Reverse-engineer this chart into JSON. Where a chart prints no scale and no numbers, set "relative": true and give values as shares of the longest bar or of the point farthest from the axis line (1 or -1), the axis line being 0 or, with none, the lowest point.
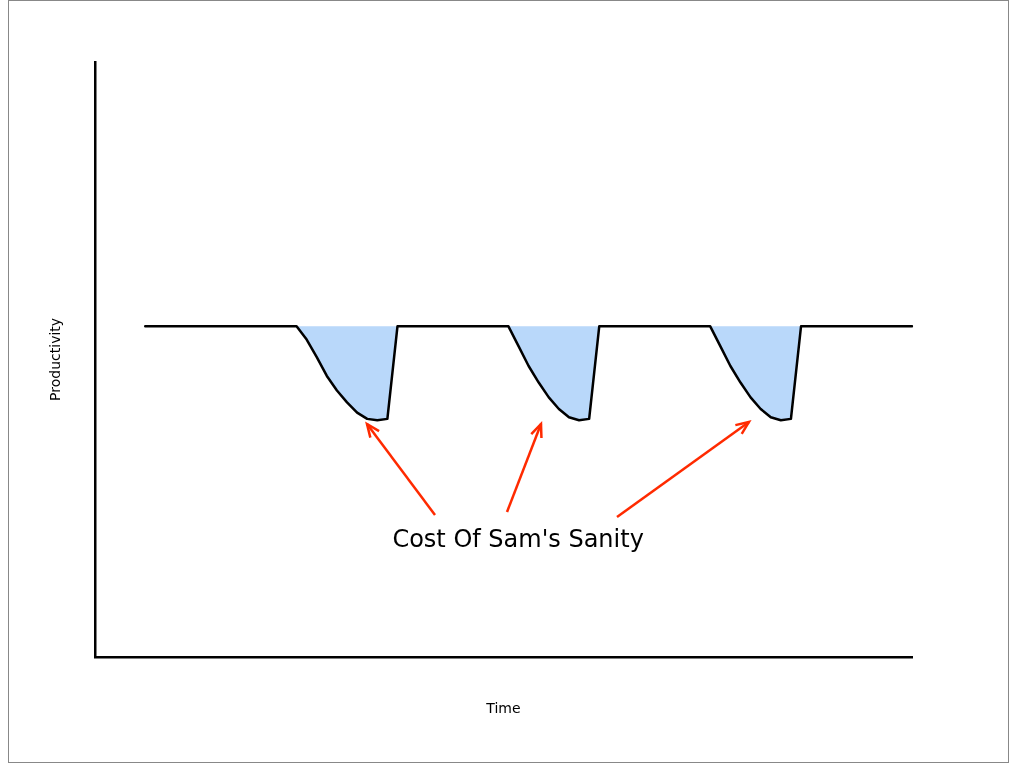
{
  "chart_data": {
    "type": "line",
    "relative": true,
    "xlabel": "Time",
    "ylabel": "Productivity",
    "annotations": [
      "Cost Of Sam's Sanity"
    ],
    "marker": "none",
    "line_style": "solid",
    "categories": [
      null,
      null,
      null,
      null,
      null,
      null,
      null,
      null,
      null,
      null,
      null,
      null,
      null,
      null,
      null,
      null,
      null,
      null,
      null,
      null,
      null,
      null,
      null,
      null,
      null,
      null,
      null,
      null,
      null,
      null,
      null,
      null,
      null,
      null,
      null,
      null,
      null,
      null,
      null,
      null,
      null,
      null,
      null,
      null,
      null,
      null,
      null,
      null,
      null,
      null,
      null,
      null,
      null,
      null,
      null,
      null,
      null,
      null,
      null,
      null,
      null,
      null,
      null,
      null,
      null,
      null,
      null,
      null,
      null,
      null,
      null,
      null,
      null,
      null,
      null,
      null,
      null,
      null,
      null,
      null,
      null,
      null
    ],
    "series": [
      {
        "color": "#000000",
        "values": [
          null,
          null,
          null,
          null,
          null,
          1,
          1,
          1,
          1,
          1,
          1,
          1,
          1,
          1,
          1,
          1,
          1,
          1,
          1,
          1,
          1,
          0.96,
          0.907,
          0.85,
          0.806,
          0.77,
          0.739,
          0.72,
          0.716,
          0.72,
          1,
          1,
          1,
          1,
          1,
          1,
          1,
          1,
          1,
          1,
          1,
          1,
          0.94,
          0.88,
          0.83,
          0.785,
          0.75,
          0.725,
          0.716,
          0.72,
          1,
          1,
          1,
          1,
          1,
          1,
          1,
          1,
          1,
          1,
          1,
          1,
          0.94,
          0.88,
          0.83,
          0.785,
          0.75,
          0.725,
          0.716,
          0.72,
          1,
          1,
          1,
          1,
          1,
          1,
          1,
          1,
          1,
          1,
          1,
          1
        ],
        "lower": [
          null,
          null,
          null,
          null,
          null,
          null,
          null,
          null,
          null,
          null,
          null,
          null,
          null,
          null,
          null,
          null,
          null,
          null,
          null,
          null,
          1,
          0.96,
          0.907,
          0.85,
          0.806,
          0.77,
          0.739,
          0.72,
          0.716,
          0.72,
          1,
          null,
          null,
          null,
          null,
          null,
          null,
          null,
          null,
          null,
          null,
          1,
          0.94,
          0.88,
          0.83,
          0.785,
          0.75,
          0.725,
          0.716,
          0.72,
          1,
          null,
          null,
          null,
          null,
          null,
          null,
          null,
          null,
          null,
          null,
          1,
          0.94,
          0.88,
          0.83,
          0.785,
          0.75,
          0.725,
          0.716,
          0.72,
          1,
          null,
          null,
          null,
          null,
          null,
          null,
          null,
          null,
          null,
          null,
          null
        ],
        "upper": [
          null,
          null,
          null,
          null,
          null,
          null,
          null,
          null,
          null,
          null,
          null,
          null,
          null,
          null,
          null,
          null,
          null,
          null,
          null,
          null,
          1,
          1,
          1,
          1,
          1,
          1,
          1,
          1,
          1,
          1,
          1,
          null,
          null,
          null,
          null,
          null,
          null,
          null,
          null,
          null,
          null,
          1,
          1,
          1,
          1,
          1,
          1,
          1,
          1,
          1,
          1,
          null,
          null,
          null,
          null,
          null,
          null,
          null,
          null,
          null,
          null,
          1,
          1,
          1,
          1,
          1,
          1,
          1,
          1,
          1,
          1,
          null,
          null,
          null,
          null,
          null,
          null,
          null,
          null,
          null,
          null,
          null
        ]
      }
    ]
  }
}
